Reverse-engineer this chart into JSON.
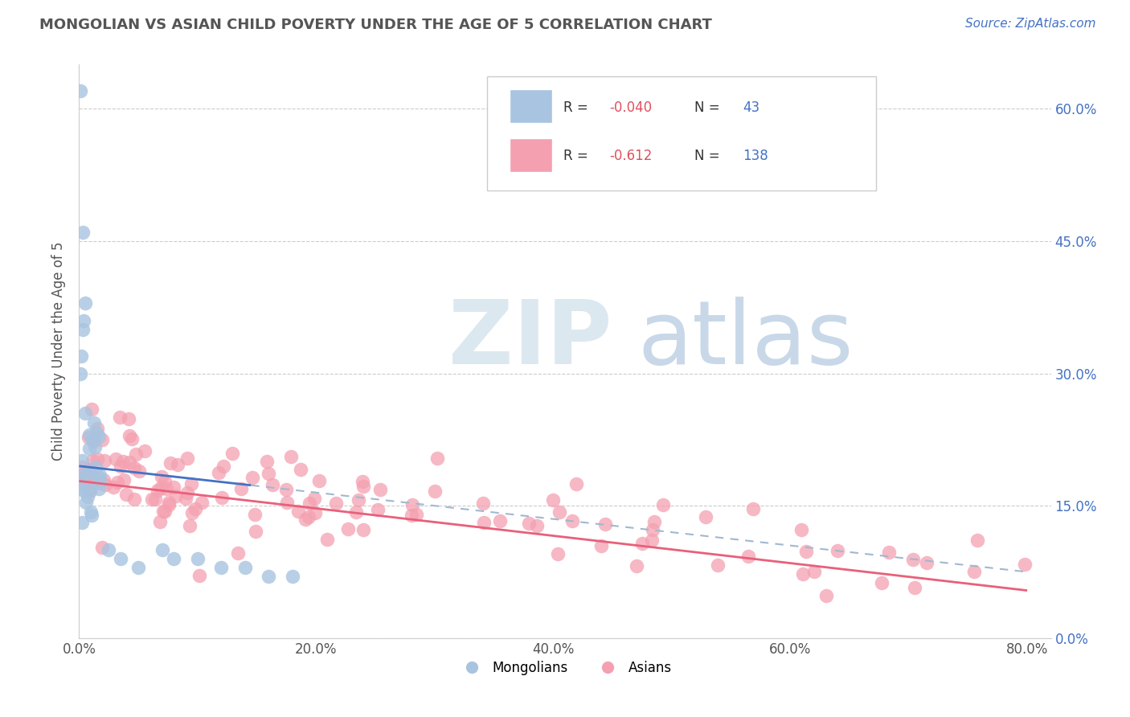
{
  "title": "MONGOLIAN VS ASIAN CHILD POVERTY UNDER THE AGE OF 5 CORRELATION CHART",
  "source": "Source: ZipAtlas.com",
  "ylabel": "Child Poverty Under the Age of 5",
  "R_mongolian": -0.04,
  "N_mongolian": 43,
  "R_asian": -0.612,
  "N_asian": 138,
  "mongolian_color": "#a8c4e0",
  "asian_color": "#f4a0b0",
  "mongolian_line_color": "#4472c4",
  "asian_line_color": "#e8607a",
  "dash_line_color": "#a0b8d0",
  "background_color": "#ffffff",
  "grid_color": "#cccccc",
  "title_color": "#555555",
  "right_tick_color": "#4472c4",
  "legend_mongolians": "Mongolians",
  "legend_asians": "Asians",
  "xlim": [
    0.0,
    0.82
  ],
  "ylim": [
    0.0,
    0.65
  ],
  "xticks": [
    0.0,
    0.2,
    0.4,
    0.6,
    0.8
  ],
  "yticks": [
    0.0,
    0.15,
    0.3,
    0.45,
    0.6
  ],
  "xticklabels": [
    "0.0%",
    "20.0%",
    "40.0%",
    "60.0%",
    "80.0%"
  ],
  "yticklabels": [
    "0.0%",
    "15.0%",
    "30.0%",
    "45.0%",
    "60.0%"
  ]
}
